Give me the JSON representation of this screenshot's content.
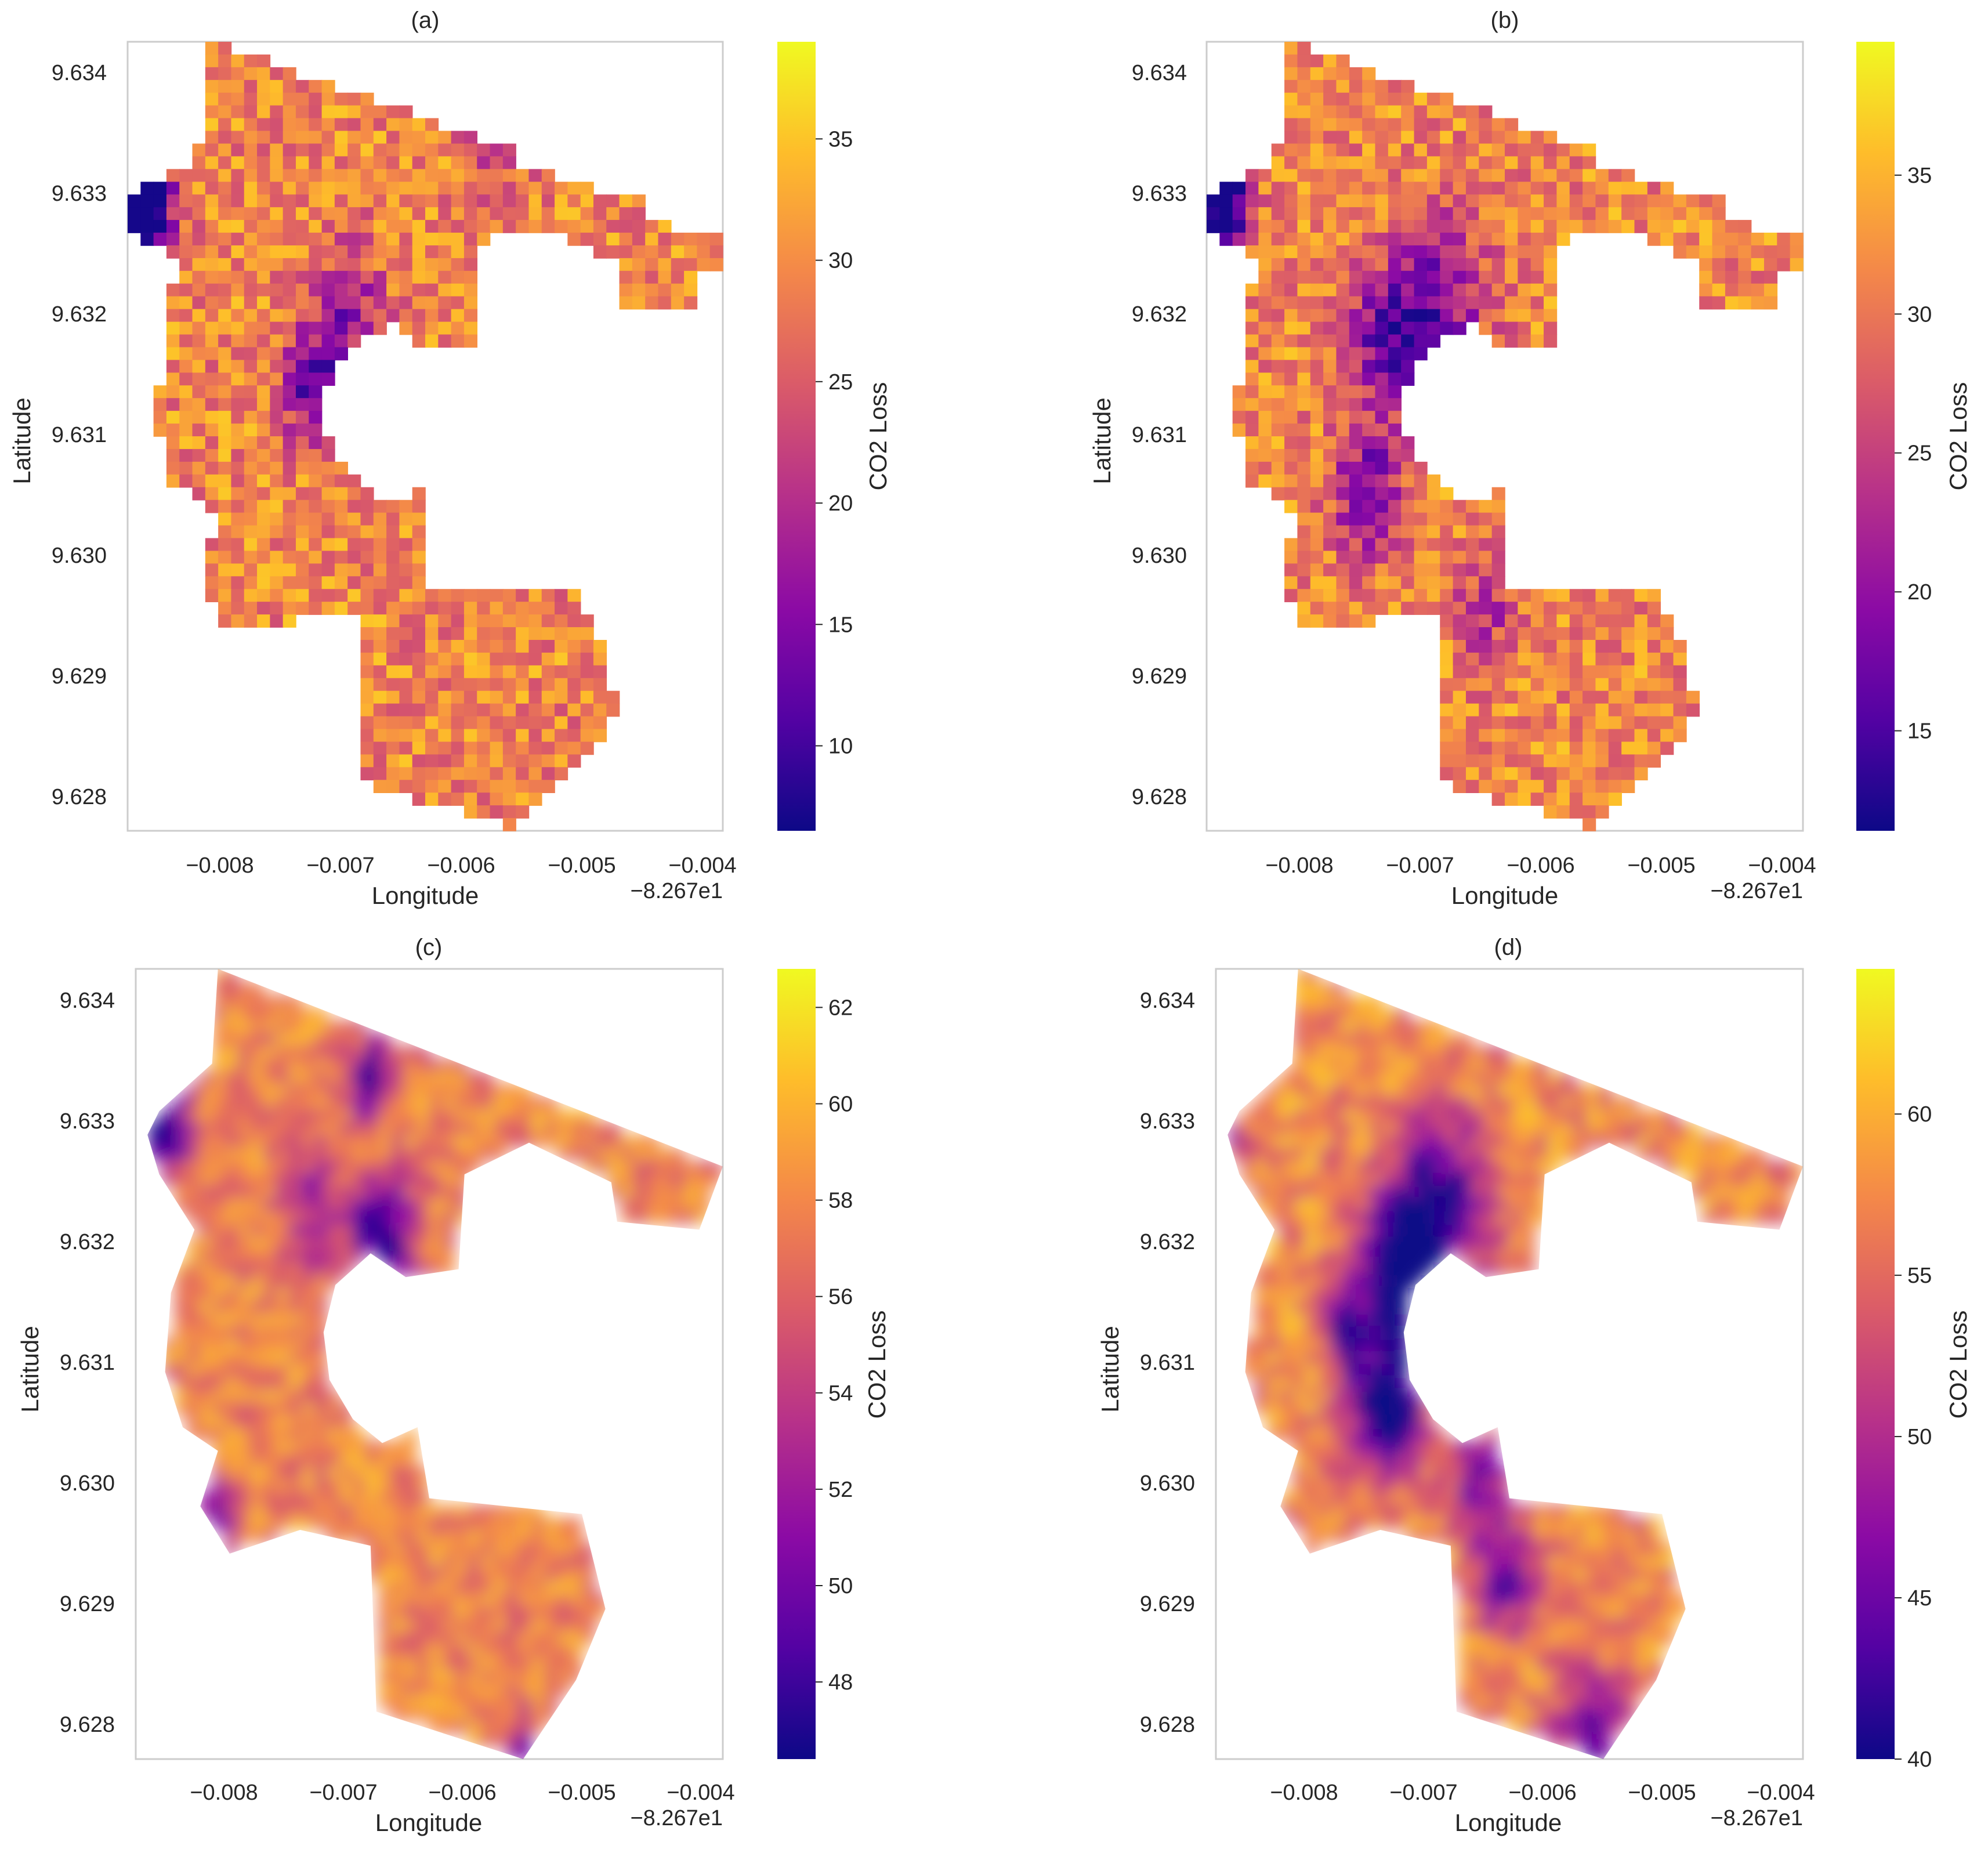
{
  "chart_data": [
    {
      "id": "a",
      "type": "heatmap",
      "title": "(a)",
      "xlabel": "Longitude",
      "ylabel": "Latitude",
      "x_offset_label": "−8.267e1",
      "xticks": [
        "−0.008",
        "−0.007",
        "−0.006",
        "−0.005",
        "−0.004"
      ],
      "yticks": [
        "9.628",
        "9.629",
        "9.630",
        "9.631",
        "9.632",
        "9.633",
        "9.634"
      ],
      "xlim": [
        -0.00878,
        -0.00394
      ],
      "ylim": [
        9.62773,
        9.63427
      ],
      "colorbar_label": "CO2 Loss",
      "colorbar_ticks": [
        "10",
        "15",
        "20",
        "25",
        "30",
        "35"
      ],
      "clim": [
        6.5,
        39
      ],
      "colormap": "plasma",
      "rendering": "pixelated",
      "grid": false,
      "value_range_observed": [
        7,
        38
      ]
    },
    {
      "id": "b",
      "type": "heatmap",
      "title": "(b)",
      "xlabel": "Longitude",
      "ylabel": "Latitude",
      "x_offset_label": "−8.267e1",
      "xticks": [
        "−0.008",
        "−0.007",
        "−0.006",
        "−0.005",
        "−0.004"
      ],
      "yticks": [
        "9.628",
        "9.629",
        "9.630",
        "9.631",
        "9.632",
        "9.633",
        "9.634"
      ],
      "xlim": [
        -0.00878,
        -0.00394
      ],
      "ylim": [
        9.62773,
        9.63427
      ],
      "colorbar_label": "CO2 Loss",
      "colorbar_ticks": [
        "15",
        "20",
        "25",
        "30",
        "35"
      ],
      "clim": [
        11.4,
        39.8
      ],
      "colormap": "plasma",
      "rendering": "pixelated",
      "grid": false,
      "value_range_observed": [
        12,
        39
      ]
    },
    {
      "id": "c",
      "type": "heatmap",
      "title": "(c)",
      "xlabel": "Longitude",
      "ylabel": "Latitude",
      "x_offset_label": "−8.267e1",
      "xticks": [
        "−0.008",
        "−0.007",
        "−0.006",
        "−0.005",
        "−0.004"
      ],
      "yticks": [
        "9.628",
        "9.629",
        "9.630",
        "9.631",
        "9.632",
        "9.633",
        "9.634"
      ],
      "xlim": [
        -0.00878,
        -0.00394
      ],
      "ylim": [
        9.62773,
        9.63427
      ],
      "colorbar_label": "CO2 Loss",
      "colorbar_ticks": [
        "48",
        "50",
        "52",
        "54",
        "56",
        "58",
        "60",
        "62"
      ],
      "clim": [
        46.4,
        62.8
      ],
      "colormap": "plasma",
      "rendering": "smooth",
      "grid": false,
      "value_range_observed": [
        47,
        62
      ]
    },
    {
      "id": "d",
      "type": "heatmap",
      "title": "(d)",
      "xlabel": "Longitude",
      "ylabel": "Latitude",
      "x_offset_label": "−8.267e1",
      "xticks": [
        "−0.008",
        "−0.007",
        "−0.006",
        "−0.005",
        "−0.004"
      ],
      "yticks": [
        "9.628",
        "9.629",
        "9.630",
        "9.631",
        "9.632",
        "9.633",
        "9.634"
      ],
      "xlim": [
        -0.00878,
        -0.00394
      ],
      "ylim": [
        9.62773,
        9.63427
      ],
      "colorbar_label": "CO2 Loss",
      "colorbar_ticks": [
        "40",
        "45",
        "50",
        "55",
        "60"
      ],
      "clim": [
        40,
        64.5
      ],
      "colormap": "plasma",
      "rendering": "smooth",
      "grid": false,
      "value_range_observed": [
        40,
        64
      ]
    }
  ],
  "colors": {
    "plasma_stops": [
      "#0d0887",
      "#5302a3",
      "#8b0aa5",
      "#b83289",
      "#db5c68",
      "#f48849",
      "#febd2a",
      "#f0f921"
    ],
    "axes_frame": "#cccccc",
    "text": "#262626"
  }
}
